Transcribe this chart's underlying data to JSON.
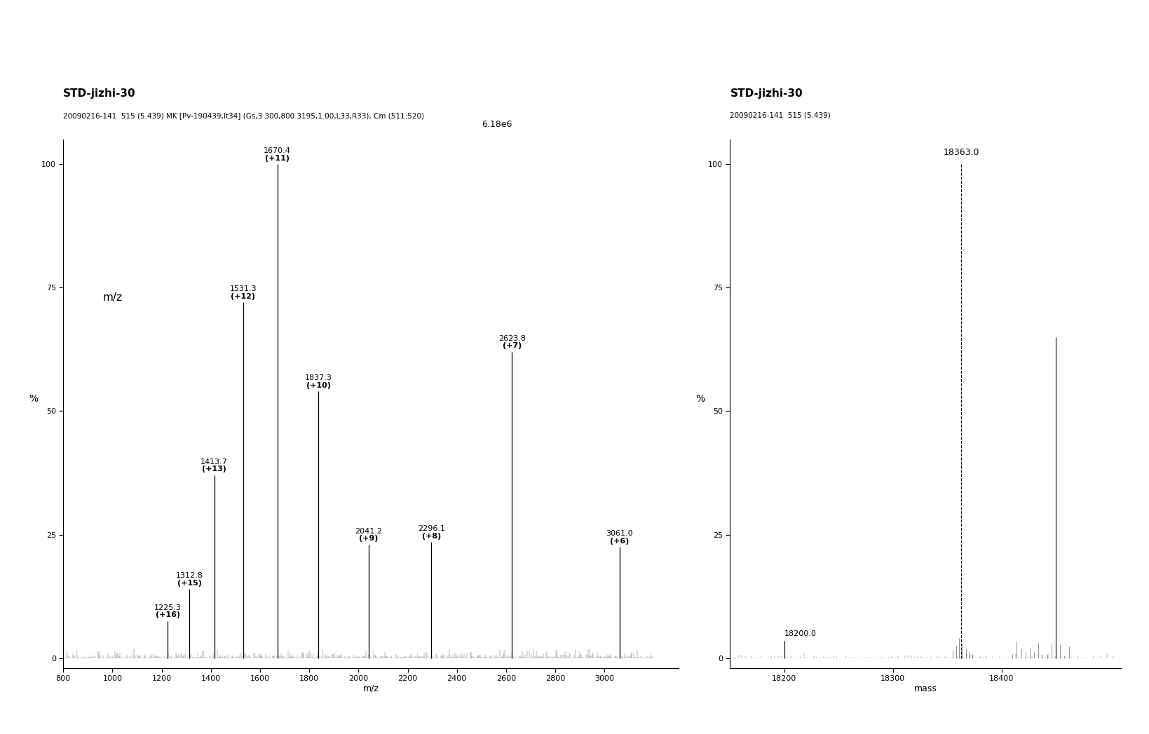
{
  "left_title": "STD-jizhi-30",
  "left_subtitle": "20090216-141  515 (5.439) MK [Pv-190439,It34] (Gs,3 300,800 3195,1.00,L33,R33), Cm (511:520)",
  "left_intensity_label": "6.18e6",
  "left_xlabel": "m/z",
  "left_ylabel": "%",
  "left_xlim": [
    800,
    3300
  ],
  "left_ylim": [
    -2,
    105
  ],
  "left_xticks": [
    800,
    1000,
    1200,
    1400,
    1600,
    1800,
    2000,
    2200,
    2400,
    2600,
    2800,
    3000
  ],
  "left_peaks": [
    {
      "mz": 1225.3,
      "intensity": 7.5,
      "label": "1225.3",
      "charge": "(+16)"
    },
    {
      "mz": 1312.8,
      "intensity": 14.0,
      "label": "1312.8",
      "charge": "(+15)"
    },
    {
      "mz": 1413.7,
      "intensity": 37.0,
      "label": "1413.7",
      "charge": "(+13)"
    },
    {
      "mz": 1531.3,
      "intensity": 72.0,
      "label": "1531.3",
      "charge": "(+12)"
    },
    {
      "mz": 1670.4,
      "intensity": 100.0,
      "label": "1670.4",
      "charge": "(+11)"
    },
    {
      "mz": 1837.3,
      "intensity": 54.0,
      "label": "1837.3",
      "charge": "(+10)"
    },
    {
      "mz": 2041.2,
      "intensity": 23.0,
      "label": "2041.2",
      "charge": "(+9)"
    },
    {
      "mz": 2296.1,
      "intensity": 23.5,
      "label": "2296.1",
      "charge": "(+8)"
    },
    {
      "mz": 2623.8,
      "intensity": 62.0,
      "label": "2623.8",
      "charge": "(+7)"
    },
    {
      "mz": 3061.0,
      "intensity": 22.5,
      "label": "3061.0",
      "charge": "(+6)"
    }
  ],
  "right_title": "STD-jizhi-30",
  "right_subtitle": "20090216-141  515 (5.439)",
  "right_xlabel": "mass",
  "right_ylabel": "%",
  "right_xlim": [
    18150,
    18510
  ],
  "right_ylim": [
    -2,
    105
  ],
  "right_xticks": [
    18200,
    18300,
    18400
  ],
  "right_peaks": [
    {
      "mass": 18200.0,
      "intensity": 3.5,
      "label": "18200.0",
      "show_label": true
    },
    {
      "mass": 18363.0,
      "intensity": 100.0,
      "label": "18363.0",
      "show_label": true
    },
    {
      "mass": 18450.0,
      "intensity": 65.0,
      "label": "",
      "show_label": false
    }
  ],
  "background_color": "#ffffff",
  "line_color": "#000000"
}
